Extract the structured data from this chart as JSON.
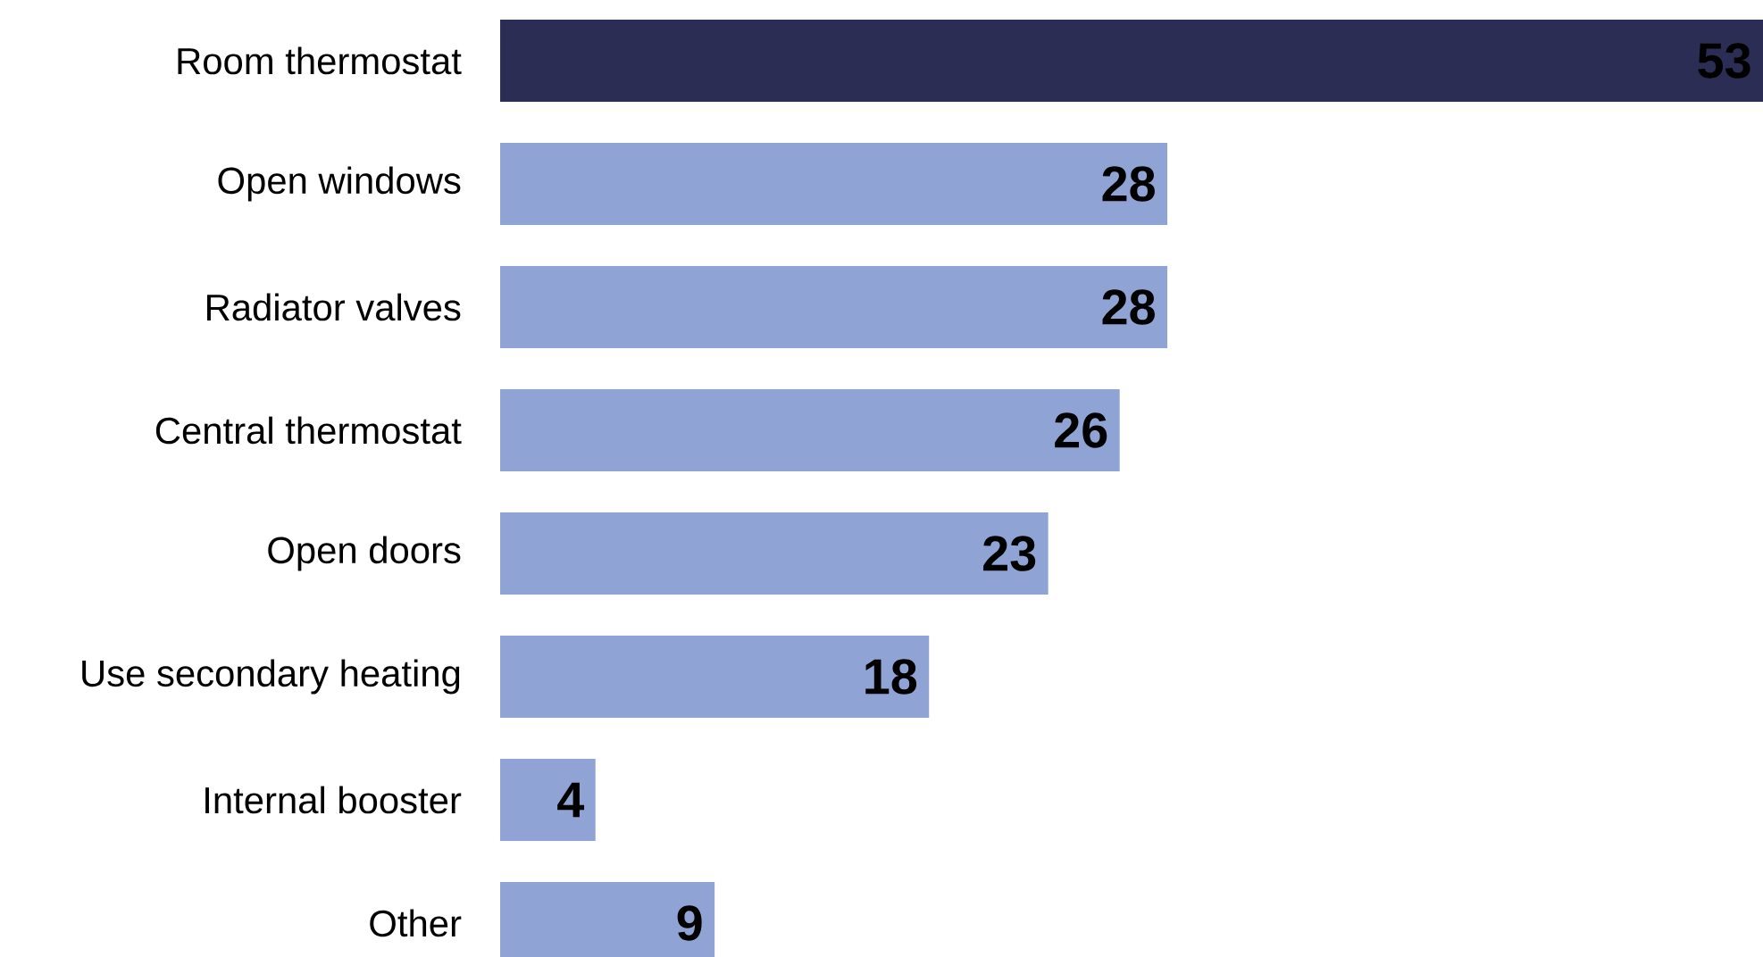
{
  "chart_data": {
    "type": "bar",
    "orientation": "horizontal",
    "data_labels": true,
    "categories": [
      "Room thermostat",
      "Open windows",
      "Radiator valves",
      "Central thermostat",
      "Open doors",
      "Use secondary heating",
      "Internal booster",
      "Other"
    ],
    "values": [
      53,
      28,
      28,
      26,
      23,
      18,
      4,
      9
    ],
    "colors": [
      "#2b2d55",
      "#8fa4d4",
      "#8fa4d4",
      "#8fa4d4",
      "#8fa4d4",
      "#8fa4d4",
      "#8fa4d4",
      "#8fa4d4"
    ]
  }
}
